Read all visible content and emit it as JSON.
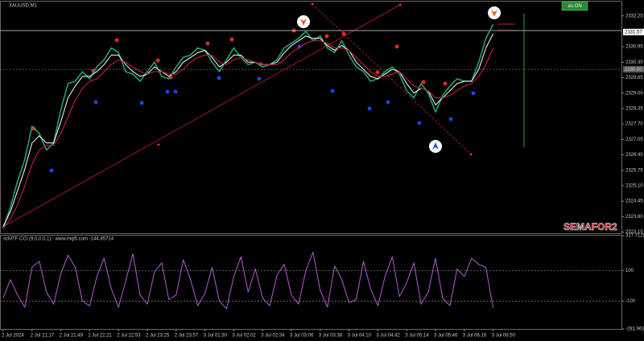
{
  "chart_data": [
    {
      "type": "line",
      "title": "XAUUSD,M1",
      "categories": [
        "2 Jul 2024",
        null,
        null,
        null,
        "2 Jul 21:17",
        null,
        null,
        null,
        "2 Jul 21:49",
        null,
        null,
        null,
        "2 Jul 22:21",
        null,
        null,
        null,
        "2 Jul 22:53",
        null,
        null,
        null,
        "2 Jul 23:25",
        null,
        null,
        null,
        "2 Jul 23:57",
        null,
        null,
        null,
        "3 Jul 01:30",
        null,
        null,
        null,
        "3 Jul 02:02",
        null,
        null,
        null,
        "3 Jul 02:34",
        null,
        null,
        null,
        "3 Jul 03:06",
        null,
        null,
        null,
        "3 Jul 03:38",
        null,
        null,
        null,
        "3 Jul 04:10",
        null,
        null,
        null,
        "3 Jul 04:42",
        null,
        null,
        null,
        "3 Jul 05:14",
        null,
        null,
        null,
        "3 Jul 05:46",
        null,
        null,
        null,
        "3 Jul 06:18",
        null,
        null,
        null,
        "3 Jul 06:50"
      ],
      "series": [
        {
          "color": "#1fa36a",
          "width": 1.6,
          "values": [
            2323.3,
            2324.2,
            2325.3,
            2326.2,
            2327.6,
            2327.3,
            2326.6,
            2326.9,
            2328.3,
            2329.4,
            2329.5,
            2329.9,
            2329.6,
            2330.1,
            2330.4,
            2330.9,
            2330.7,
            2329.9,
            2329.8,
            2329.5,
            2329.9,
            2330.3,
            2329.7,
            2329.6,
            2330.1,
            2330.5,
            2330.6,
            2330.9,
            2330.8,
            2330.3,
            2329.9,
            2330.4,
            2330.9,
            2330.5,
            2330.2,
            2330.3,
            2330.1,
            2330.2,
            2330.4,
            2330.9,
            2331.1,
            2331.3,
            2331.6,
            2331.2,
            2331.4,
            2330.9,
            2330.7,
            2331.2,
            2330.6,
            2330.1,
            2329.9,
            2329.5,
            2329.6,
            2329.9,
            2330.1,
            2329.8,
            2329.1,
            2328.8,
            2329.4,
            2329.0,
            2328.2,
            2328.9,
            2329.3,
            2329.6,
            2329.5,
            2329.5,
            2330.3,
            2331.3,
            2331.9
          ]
        },
        {
          "color": "#ffffff",
          "width": 1,
          "values": [
            2323.4,
            2324.0,
            2324.9,
            2325.8,
            2326.9,
            2327.2,
            2326.9,
            2326.9,
            2327.8,
            2328.8,
            2329.3,
            2329.7,
            2329.7,
            2329.9,
            2330.2,
            2330.6,
            2330.6,
            2330.2,
            2329.9,
            2329.7,
            2329.8,
            2330.1,
            2329.9,
            2329.7,
            2329.9,
            2330.3,
            2330.5,
            2330.7,
            2330.8,
            2330.5,
            2330.1,
            2330.3,
            2330.6,
            2330.6,
            2330.3,
            2330.3,
            2330.2,
            2330.2,
            2330.3,
            2330.7,
            2331.0,
            2331.2,
            2331.4,
            2331.3,
            2331.3,
            2331.0,
            2330.8,
            2331.0,
            2330.8,
            2330.3,
            2330.0,
            2329.7,
            2329.6,
            2329.8,
            2330.0,
            2329.9,
            2329.4,
            2329.0,
            2329.2,
            2329.1,
            2328.5,
            2328.8,
            2329.1,
            2329.4,
            2329.5,
            2329.5,
            2330.0,
            2330.9,
            2331.5
          ]
        },
        {
          "color": "#b0203a",
          "width": 1.2,
          "values": [
            2323.3,
            2323.7,
            2324.3,
            2325.1,
            2326.0,
            2326.6,
            2326.8,
            2326.8,
            2327.3,
            2328.0,
            2328.7,
            2329.2,
            2329.5,
            2329.6,
            2329.9,
            2330.2,
            2330.4,
            2330.3,
            2330.1,
            2329.9,
            2329.8,
            2329.9,
            2329.9,
            2329.8,
            2329.8,
            2330.0,
            2330.3,
            2330.5,
            2330.6,
            2330.6,
            2330.3,
            2330.2,
            2330.4,
            2330.5,
            2330.4,
            2330.3,
            2330.2,
            2330.2,
            2330.2,
            2330.4,
            2330.7,
            2330.9,
            2331.1,
            2331.2,
            2331.2,
            2331.1,
            2330.9,
            2330.9,
            2330.8,
            2330.5,
            2330.2,
            2329.9,
            2329.7,
            2329.7,
            2329.8,
            2329.9,
            2329.6,
            2329.3,
            2329.2,
            2329.1,
            2328.8,
            2328.8,
            2328.9,
            2329.1,
            2329.3,
            2329.4,
            2329.7,
            2330.2,
            2330.9
          ]
        }
      ],
      "ylim": [
        2323.1,
        2332.85
      ],
      "yticks": [
        2332.25,
        2330.95,
        {
          "value": 2330.3,
          "label": "2330.30"
        },
        2329.65,
        {
          "value": 2329.0,
          "label": "2329.00"
        },
        2328.35,
        {
          "value": 2327.7,
          "label": "2327.70"
        },
        2327.05,
        {
          "value": 2326.4,
          "label": "2326.40"
        },
        2325.75,
        {
          "value": 2325.1,
          "label": "2325.10"
        },
        2324.45,
        {
          "value": 2323.8,
          "label": "2323.80"
        },
        2323.15
      ],
      "price_labels": [
        2331.57,
        {
          "value": 2330.0,
          "label": "2330.00"
        }
      ],
      "annotations": [
        "au ON",
        "SEMAFOR2"
      ]
    },
    {
      "type": "line",
      "title": "scMTF CCI (9,0,0,0,1) - www.mql5.com -144.85714",
      "series": [
        {
          "color": "#b45ad0",
          "width": 1,
          "values": [
            -80,
            40,
            -60,
            -140,
            120,
            160,
            -40,
            -120,
            80,
            200,
            120,
            -100,
            -130,
            60,
            180,
            -20,
            -140,
            30,
            210,
            -60,
            -120,
            90,
            150,
            -90,
            -60,
            170,
            40,
            -130,
            -50,
            120,
            -100,
            -150,
            60,
            190,
            -40,
            110,
            -80,
            -130,
            70,
            140,
            -60,
            -120,
            100,
            220,
            -30,
            -140,
            130,
            40,
            -110,
            -90,
            160,
            -20,
            -130,
            60,
            190,
            -70,
            20,
            150,
            -120,
            -40,
            180,
            -80,
            -130,
            110,
            60,
            180,
            140,
            120,
            -145
          ]
        }
      ],
      "ylim": [
        -281.96355,
        327.71255
      ],
      "yticks": [
        327.71255,
        100,
        -100,
        -281.96355
      ],
      "levels": [
        100,
        -100
      ]
    }
  ]
}
